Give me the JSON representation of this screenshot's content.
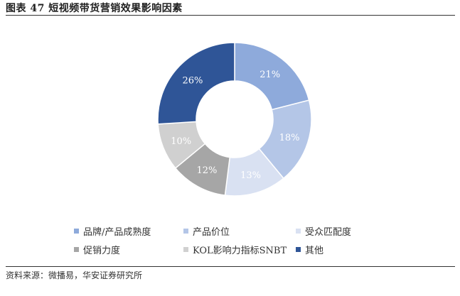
{
  "figure": {
    "title": "图表 47  短视频带货营销效果影响因素",
    "source": "资料来源：微播易，华安证券研究所"
  },
  "chart_data": {
    "type": "pie",
    "style": "donut",
    "categories": [
      "品牌/产品成熟度",
      "产品价位",
      "受众匹配度",
      "促销力度",
      "KOL影响力指标SNBT",
      "其他"
    ],
    "values": [
      21,
      18,
      13,
      12,
      10,
      26
    ],
    "value_labels": [
      "21%",
      "18%",
      "13%",
      "12%",
      "10%",
      "26%"
    ],
    "colors": [
      "#8eaadb",
      "#b4c6e7",
      "#d9e1f2",
      "#a6a6a6",
      "#d0d0d0",
      "#2f5597"
    ],
    "label_colors": [
      "#ffffff",
      "#ffffff",
      "#ffffff",
      "#ffffff",
      "#ffffff",
      "#ffffff"
    ],
    "legend_position": "bottom",
    "start_angle_deg": 0,
    "direction": "clockwise"
  }
}
